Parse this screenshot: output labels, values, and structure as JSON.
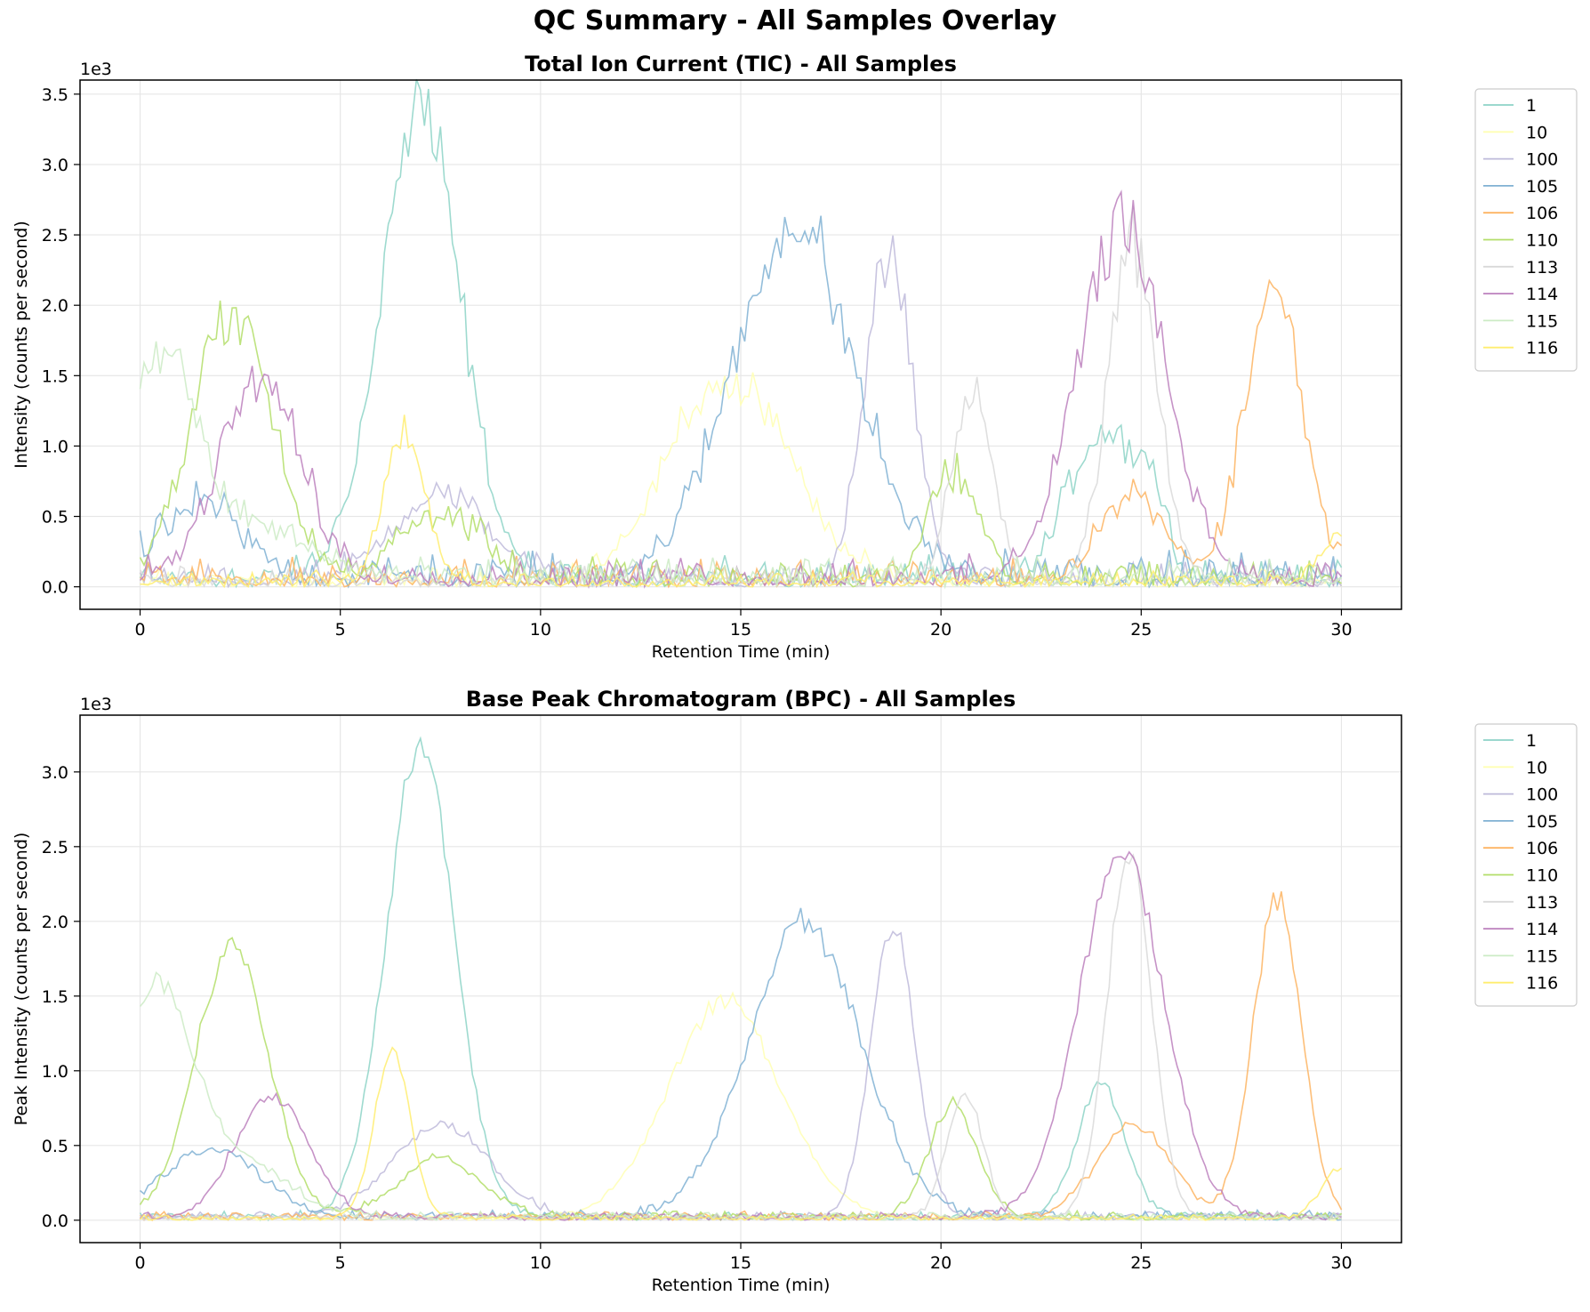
{
  "figure": {
    "title": "QC Summary - All Samples Overlay"
  },
  "colors": {
    "1": "#8dd3c7",
    "10": "#ffffb3",
    "100": "#bebada",
    "105": "#80b1d3",
    "106": "#fdb462",
    "110": "#b3de69",
    "113": "#d9d9d9",
    "114": "#bc80bd",
    "115": "#ccebc5",
    "116": "#ffed6f"
  },
  "chart_data": [
    {
      "type": "line",
      "title": "Total Ion Current (TIC) - All Samples",
      "xlabel": "Retention Time (min)",
      "ylabel": "Intensity (counts per second)",
      "y_offset_text": "1e3",
      "xlim": [
        -1.5,
        31.5
      ],
      "ylim": [
        -0.16,
        3.6
      ],
      "x_ticks": [
        0,
        5,
        10,
        15,
        20,
        25,
        30
      ],
      "y_ticks": [
        0.0,
        0.5,
        1.0,
        1.5,
        2.0,
        2.5,
        3.0,
        3.5
      ],
      "y_tick_labels": [
        "0.0",
        "0.5",
        "1.0",
        "1.5",
        "2.0",
        "2.5",
        "3.0",
        "3.5"
      ],
      "grid": true,
      "legend_position": "outside-right",
      "noise_level": "high",
      "series": [
        {
          "name": "1",
          "base": 0.12,
          "peaks": [
            [
              7.0,
              3.25,
              1.0
            ],
            [
              24.0,
              1.05,
              0.8
            ],
            [
              25.2,
              0.5,
              0.4
            ]
          ]
        },
        {
          "name": "10",
          "base": 0.08,
          "peaks": [
            [
              14.7,
              1.45,
              1.5
            ]
          ]
        },
        {
          "name": "100",
          "base": 0.1,
          "peaks": [
            [
              18.7,
              2.3,
              0.6
            ],
            [
              7.5,
              0.6,
              1.2
            ]
          ]
        },
        {
          "name": "105",
          "base": 0.15,
          "peaks": [
            [
              16.3,
              2.5,
              1.5
            ],
            [
              1.5,
              0.5,
              1.0
            ]
          ]
        },
        {
          "name": "106",
          "base": 0.12,
          "peaks": [
            [
              28.3,
              2.1,
              0.7
            ],
            [
              24.8,
              0.6,
              0.8
            ]
          ]
        },
        {
          "name": "110",
          "base": 0.12,
          "peaks": [
            [
              2.3,
              1.85,
              1.0
            ],
            [
              20.3,
              0.75,
              0.6
            ],
            [
              7.5,
              0.45,
              1.0
            ]
          ]
        },
        {
          "name": "113",
          "base": 0.08,
          "peaks": [
            [
              24.8,
              2.4,
              0.6
            ],
            [
              20.8,
              1.35,
              0.5
            ]
          ]
        },
        {
          "name": "114",
          "base": 0.12,
          "peaks": [
            [
              24.5,
              2.5,
              1.1
            ],
            [
              3.0,
              1.4,
              1.0
            ]
          ]
        },
        {
          "name": "115",
          "base": 0.12,
          "peaks": [
            [
              0.5,
              1.5,
              0.8
            ],
            [
              2.5,
              0.4,
              1.5
            ]
          ]
        },
        {
          "name": "116",
          "base": 0.06,
          "peaks": [
            [
              6.6,
              1.1,
              0.5
            ],
            [
              30.0,
              0.35,
              0.5
            ]
          ]
        }
      ]
    },
    {
      "type": "line",
      "title": "Base Peak Chromatogram (BPC) - All Samples",
      "xlabel": "Retention Time (min)",
      "ylabel": "Peak Intensity (counts per second)",
      "y_offset_text": "1e3",
      "xlim": [
        -1.5,
        31.5
      ],
      "ylim": [
        -0.15,
        3.38
      ],
      "x_ticks": [
        0,
        5,
        10,
        15,
        20,
        25,
        30
      ],
      "y_ticks": [
        0.0,
        0.5,
        1.0,
        1.5,
        2.0,
        2.5,
        3.0
      ],
      "y_tick_labels": [
        "0.0",
        "0.5",
        "1.0",
        "1.5",
        "2.0",
        "2.5",
        "3.0"
      ],
      "grid": true,
      "legend_position": "outside-right",
      "noise_level": "low",
      "series": [
        {
          "name": "1",
          "base": 0.05,
          "peaks": [
            [
              7.0,
              3.15,
              0.85
            ],
            [
              24.0,
              0.88,
              0.6
            ]
          ]
        },
        {
          "name": "10",
          "base": 0.03,
          "peaks": [
            [
              14.6,
              1.45,
              1.4
            ]
          ]
        },
        {
          "name": "100",
          "base": 0.05,
          "peaks": [
            [
              18.8,
              1.95,
              0.55
            ],
            [
              7.5,
              0.62,
              1.2
            ]
          ]
        },
        {
          "name": "105",
          "base": 0.06,
          "peaks": [
            [
              16.6,
              1.95,
              1.4
            ],
            [
              1.8,
              0.45,
              1.2
            ]
          ]
        },
        {
          "name": "106",
          "base": 0.05,
          "peaks": [
            [
              28.4,
              2.12,
              0.6
            ],
            [
              24.8,
              0.62,
              0.9
            ]
          ]
        },
        {
          "name": "110",
          "base": 0.05,
          "peaks": [
            [
              2.3,
              1.82,
              0.9
            ],
            [
              20.3,
              0.75,
              0.6
            ],
            [
              7.5,
              0.4,
              1.0
            ]
          ]
        },
        {
          "name": "113",
          "base": 0.04,
          "peaks": [
            [
              24.7,
              2.42,
              0.55
            ],
            [
              20.6,
              0.82,
              0.45
            ]
          ]
        },
        {
          "name": "114",
          "base": 0.05,
          "peaks": [
            [
              24.5,
              2.45,
              1.05
            ],
            [
              3.3,
              0.8,
              0.9
            ]
          ]
        },
        {
          "name": "115",
          "base": 0.05,
          "peaks": [
            [
              0.4,
              1.5,
              0.9
            ],
            [
              2.5,
              0.35,
              1.2
            ]
          ]
        },
        {
          "name": "116",
          "base": 0.03,
          "peaks": [
            [
              6.3,
              1.12,
              0.45
            ],
            [
              30.0,
              0.33,
              0.5
            ]
          ]
        }
      ]
    }
  ]
}
